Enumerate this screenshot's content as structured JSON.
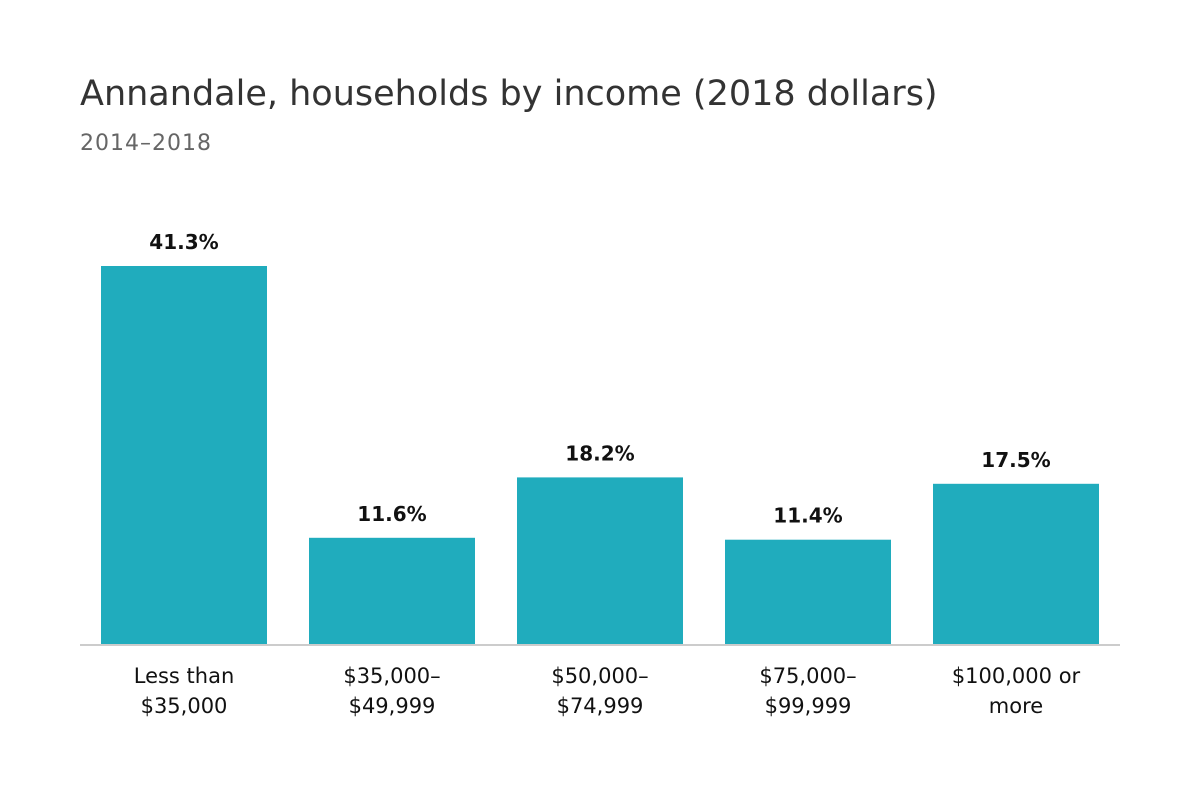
{
  "chart_data": {
    "type": "bar",
    "title": "Annandale, households by income (2018 dollars)",
    "subtitle": "2014–2018",
    "categories": [
      [
        "Less than",
        "$35,000"
      ],
      [
        "$35,000–",
        "$49,999"
      ],
      [
        "$50,000–",
        "$74,999"
      ],
      [
        "$75,000–",
        "$99,999"
      ],
      [
        "$100,000 or",
        "more"
      ]
    ],
    "values": [
      41.3,
      11.6,
      18.2,
      11.4,
      17.5
    ],
    "value_labels": [
      "41.3%",
      "11.6%",
      "18.2%",
      "11.4%",
      "17.5%"
    ],
    "unit": "%",
    "ylim": [
      0,
      41.3
    ],
    "grid": false,
    "legend": "none",
    "colors": {
      "bar": "#20acbd"
    }
  }
}
